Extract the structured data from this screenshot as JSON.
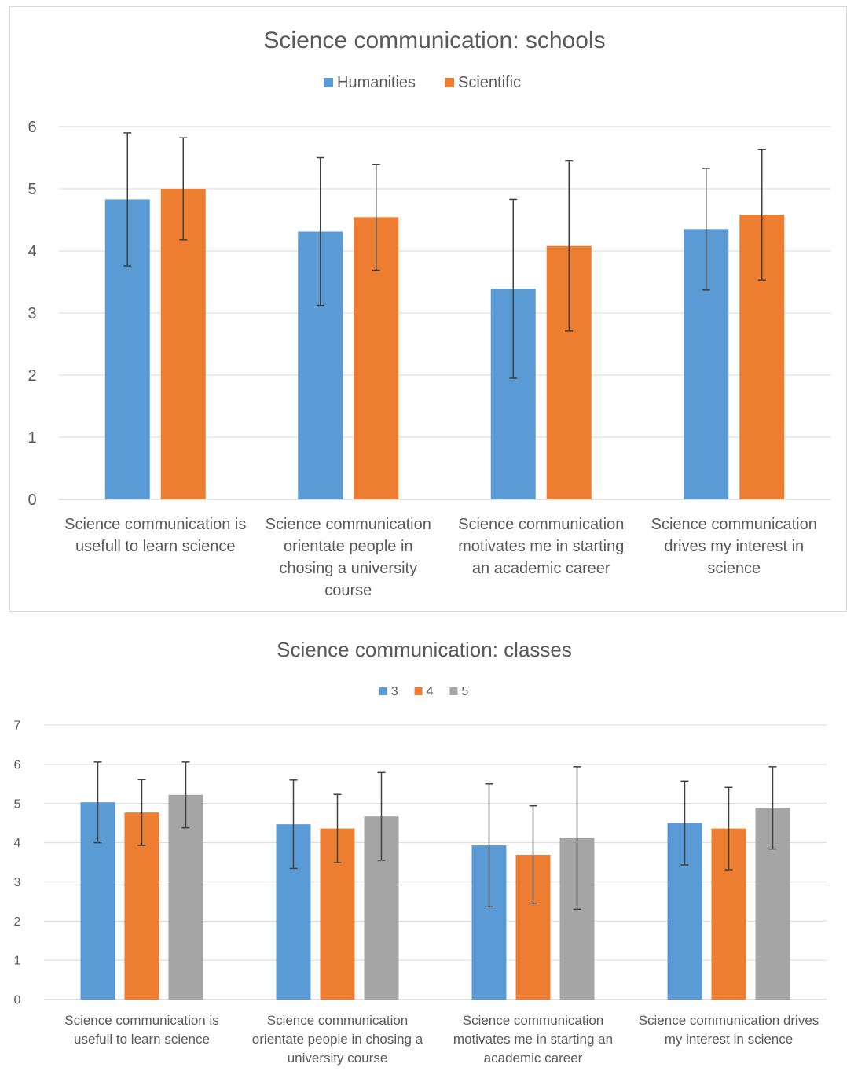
{
  "chart_data": [
    {
      "type": "bar",
      "title": "Science communication: schools",
      "xlabel": "",
      "ylabel": "",
      "ylim": [
        0,
        6
      ],
      "yticks": [
        0,
        1,
        2,
        3,
        4,
        5,
        6
      ],
      "grid": true,
      "legend": "top-center",
      "categories": [
        [
          "Science communication is",
          "usefull to learn science"
        ],
        [
          "Science communication",
          "orientate people in",
          "chosing a university",
          "course"
        ],
        [
          "Science communication",
          "motivates me in starting",
          "an academic career"
        ],
        [
          "Science communication",
          "drives my interest in",
          "science"
        ]
      ],
      "series": [
        {
          "name": "Humanities",
          "color": "#5b9bd5",
          "values": [
            4.83,
            4.31,
            3.39,
            4.35
          ],
          "errors": [
            1.07,
            1.19,
            1.44,
            0.98
          ]
        },
        {
          "name": "Scientific",
          "color": "#ed7d31",
          "values": [
            5.0,
            4.54,
            4.08,
            4.58
          ],
          "errors": [
            0.82,
            0.85,
            1.37,
            1.05
          ]
        }
      ]
    },
    {
      "type": "bar",
      "title": "Science communication: classes",
      "xlabel": "",
      "ylabel": "",
      "ylim": [
        0,
        7
      ],
      "yticks": [
        0,
        1,
        2,
        3,
        4,
        5,
        6,
        7
      ],
      "grid": true,
      "legend": "top-center",
      "categories": [
        [
          "Science communication is",
          "usefull to learn science"
        ],
        [
          "Science communication",
          "orientate people in chosing a",
          "university course"
        ],
        [
          "Science communication",
          "motivates me in starting an",
          "academic career"
        ],
        [
          "Science communication drives",
          "my interest in science"
        ]
      ],
      "series": [
        {
          "name": "3",
          "color": "#5b9bd5",
          "values": [
            5.03,
            4.47,
            3.93,
            4.5
          ],
          "errors": [
            1.03,
            1.13,
            1.57,
            1.07
          ]
        },
        {
          "name": "4",
          "color": "#ed7d31",
          "values": [
            4.77,
            4.36,
            3.69,
            4.36
          ],
          "errors": [
            0.84,
            0.87,
            1.25,
            1.05
          ]
        },
        {
          "name": "5",
          "color": "#a5a5a5",
          "values": [
            5.22,
            4.67,
            4.12,
            4.89
          ],
          "errors": [
            0.84,
            1.12,
            1.82,
            1.05
          ]
        }
      ]
    }
  ]
}
